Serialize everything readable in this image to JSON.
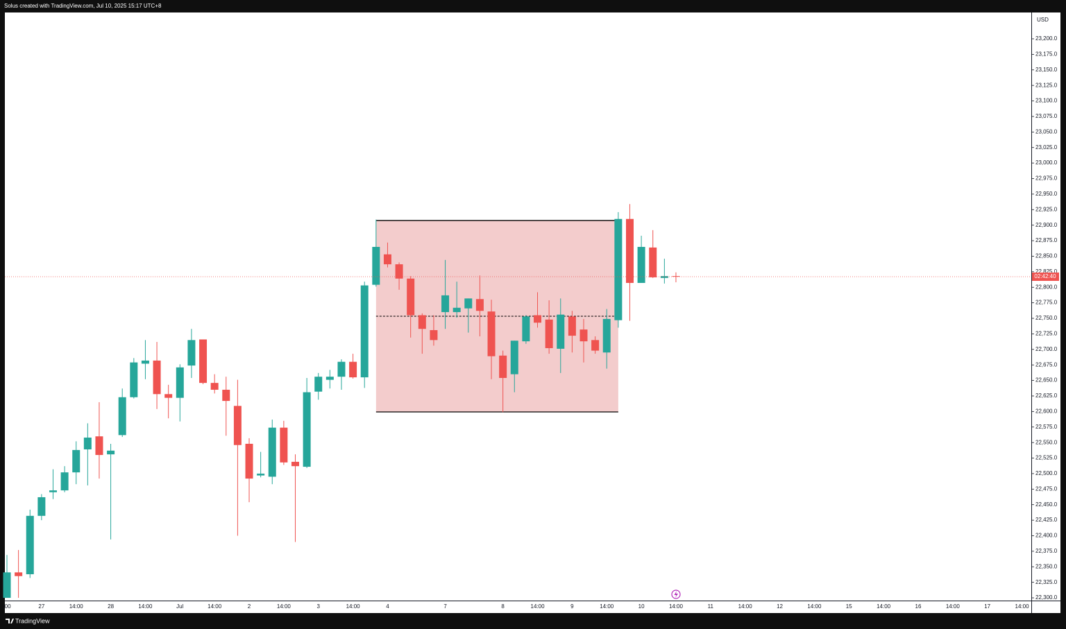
{
  "header": "Solus created with TradingView.com, Jul 10, 2025 15:17 UTC+8",
  "footer": "TradingView",
  "chart_data": {
    "type": "candlestick",
    "currency": "USD",
    "countdown": "02:42:40",
    "up_color": "#26a69a",
    "down_color": "#ef5350",
    "categories": [
      ":00",
      null,
      null,
      "27",
      null,
      null,
      "14:00",
      null,
      null,
      "28",
      null,
      null,
      "14:00",
      null,
      null,
      "Jul",
      null,
      null,
      "14:00",
      null,
      null,
      "2",
      null,
      null,
      "14:00",
      null,
      null,
      "3",
      null,
      null,
      "14:00",
      null,
      null,
      "4",
      null,
      null,
      null,
      null,
      "7",
      null,
      null,
      null,
      null,
      "8",
      null,
      null,
      "14:00",
      null,
      null,
      "9",
      null,
      null,
      "14:00",
      null,
      null,
      "10",
      null,
      null,
      "14:00",
      null,
      null,
      "11",
      null,
      null,
      "14:00",
      null,
      null,
      "12",
      null,
      null,
      "14:00",
      null,
      null,
      "15",
      null,
      null,
      "14:00",
      null,
      null,
      "16",
      null,
      null,
      "14:00",
      null,
      null,
      "17",
      null,
      null,
      "14:00"
    ],
    "open": [
      22300,
      22341,
      22338,
      22432,
      22470,
      22473,
      22502,
      22539,
      22560,
      22531,
      22562,
      22623,
      22677,
      22682,
      22628,
      22622,
      22674,
      22716,
      22646,
      22635,
      22609,
      22548,
      22497,
      22495,
      22574,
      22519,
      22511,
      22632,
      22651,
      22656,
      22680,
      22655,
      22804,
      22853,
      22837,
      22814,
      22755,
      22731,
      22760,
      22760,
      22766,
      22781,
      22761,
      22690,
      22660,
      22713,
      22755,
      22748,
      22701,
      22753,
      22732,
      22715,
      22695,
      22747,
      22910,
      22807,
      22864,
      22815,
      22818,
      null,
      null,
      null,
      null,
      null,
      null,
      null,
      null,
      null,
      null,
      null,
      null,
      null,
      null,
      null,
      null,
      null,
      null,
      null,
      null,
      null,
      null,
      null,
      null,
      null,
      null,
      null,
      null,
      null,
      null
    ],
    "high": [
      22369,
      22377,
      22442,
      22467,
      22507,
      22512,
      22552,
      22581,
      22615,
      22548,
      22637,
      22686,
      22715,
      22712,
      22643,
      22676,
      22733,
      22716,
      22660,
      22656,
      22651,
      22557,
      22535,
      22587,
      22585,
      22531,
      22654,
      22662,
      22667,
      22684,
      22693,
      22809,
      22909,
      22872,
      22840,
      22818,
      22758,
      22755,
      22844,
      22809,
      22782,
      22819,
      22780,
      22698,
      22714,
      22755,
      22792,
      22779,
      22782,
      22762,
      22749,
      22721,
      22765,
      22921,
      22934,
      22883,
      22892,
      22846,
      22824,
      null,
      null,
      null,
      null,
      null,
      null,
      null,
      null,
      null,
      null,
      null,
      null,
      null,
      null,
      null,
      null,
      null,
      null,
      null,
      null,
      null,
      null,
      null,
      null,
      null,
      null,
      null,
      null,
      null,
      null
    ],
    "low": [
      22300,
      22300,
      22332,
      22425,
      22459,
      22470,
      22483,
      22481,
      22492,
      22394,
      22559,
      22621,
      22652,
      22604,
      22589,
      22584,
      22654,
      22644,
      22629,
      22561,
      22400,
      22454,
      22494,
      22483,
      22514,
      22390,
      22509,
      22619,
      22637,
      22635,
      22653,
      22638,
      22801,
      22832,
      22796,
      22719,
      22693,
      22706,
      22733,
      22751,
      22727,
      22721,
      22652,
      22599,
      22631,
      22709,
      22735,
      22693,
      22662,
      22695,
      22679,
      22693,
      22669,
      22735,
      22746,
      22807,
      22815,
      22806,
      22808,
      null,
      null,
      null,
      null,
      null,
      null,
      null,
      null,
      null,
      null,
      null,
      null,
      null,
      null,
      null,
      null,
      null,
      null,
      null,
      null,
      null,
      null,
      null,
      null,
      null,
      null,
      null,
      null,
      null,
      null
    ],
    "close": [
      22341,
      22335,
      22432,
      22462,
      22473,
      22502,
      22538,
      22558,
      22530,
      22537,
      22623,
      22679,
      22682,
      22628,
      22622,
      22671,
      22715,
      22646,
      22635,
      22617,
      22546,
      22492,
      22500,
      22574,
      22518,
      22512,
      22631,
      22656,
      22656,
      22680,
      22655,
      22803,
      22865,
      22837,
      22814,
      22755,
      22733,
      22715,
      22787,
      22767,
      22782,
      22762,
      22689,
      22654,
      22714,
      22753,
      22743,
      22702,
      22756,
      22722,
      22713,
      22698,
      22749,
      22910,
      22807,
      22865,
      22816,
      22818,
      22817,
      null,
      null,
      null,
      null,
      null,
      null,
      null,
      null,
      null,
      null,
      null,
      null,
      null,
      null,
      null,
      null,
      null,
      null,
      null,
      null,
      null,
      null,
      null,
      null,
      null,
      null,
      null,
      null,
      null,
      null
    ],
    "zone": {
      "high": 22907.5,
      "low": 22599.3,
      "from_index": 32,
      "to_index": 53,
      "color": "#f3cccc"
    },
    "ylim": [
      22295.6,
      23242.4
    ],
    "yticks": [
      {
        "value": 22300,
        "label": "22,300.0"
      },
      {
        "value": 22325,
        "label": "22,325.0"
      },
      {
        "value": 22350,
        "label": "22,350.0"
      },
      {
        "value": 22375,
        "label": "22,375.0"
      },
      {
        "value": 22400,
        "label": "22,400.0"
      },
      {
        "value": 22425,
        "label": "22,425.0"
      },
      {
        "value": 22450,
        "label": "22,450.0"
      },
      {
        "value": 22475,
        "label": "22,475.0"
      },
      {
        "value": 22500,
        "label": "22,500.0"
      },
      {
        "value": 22525,
        "label": "22,525.0"
      },
      {
        "value": 22550,
        "label": "22,550.0"
      },
      {
        "value": 22575,
        "label": "22,575.0"
      },
      {
        "value": 22600,
        "label": "22,600.0"
      },
      {
        "value": 22625,
        "label": "22,625.0"
      },
      {
        "value": 22650,
        "label": "22,650.0"
      },
      {
        "value": 22675,
        "label": "22,675.0"
      },
      {
        "value": 22700,
        "label": "22,700.0"
      },
      {
        "value": 22725,
        "label": "22,725.0"
      },
      {
        "value": 22750,
        "label": "22,750.0"
      },
      {
        "value": 22775,
        "label": "22,775.0"
      },
      {
        "value": 22800,
        "label": "22,800.0"
      },
      {
        "value": 22825,
        "label": "22,825.0"
      },
      {
        "value": 22850,
        "label": "22,850.0"
      },
      {
        "value": 22875,
        "label": "22,875.0"
      },
      {
        "value": 22900,
        "label": "22,900.0"
      },
      {
        "value": 22925,
        "label": "22,925.0"
      },
      {
        "value": 22950,
        "label": "22,950.0"
      },
      {
        "value": 22975,
        "label": "22,975.0"
      },
      {
        "value": 23000,
        "label": "23,000.0"
      },
      {
        "value": 23025,
        "label": "23,025.0"
      },
      {
        "value": 23050,
        "label": "23,050.0"
      },
      {
        "value": 23075,
        "label": "23,075.0"
      },
      {
        "value": 23100,
        "label": "23,100.0"
      },
      {
        "value": 23125,
        "label": "23,125.0"
      },
      {
        "value": 23150,
        "label": "23,150.0"
      },
      {
        "value": 23175,
        "label": "23,175.0"
      },
      {
        "value": 23200,
        "label": "23,200.0"
      }
    ]
  }
}
